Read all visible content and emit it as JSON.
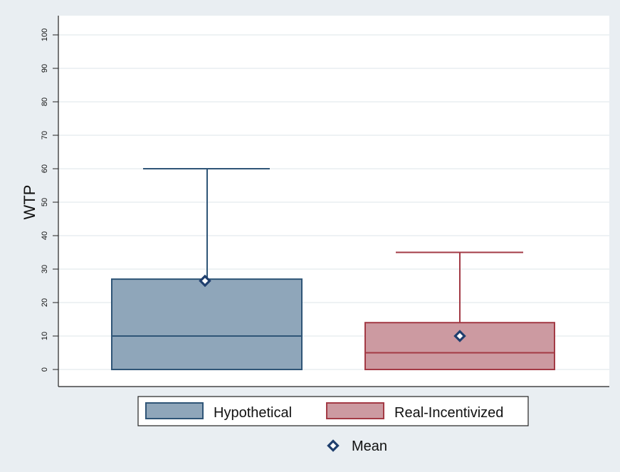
{
  "chart_data": {
    "type": "box",
    "ylabel": "WTP",
    "ylim": [
      0,
      100
    ],
    "yticks": [
      0,
      10,
      20,
      30,
      40,
      50,
      60,
      70,
      80,
      90,
      100
    ],
    "grid": true,
    "legend_position": "bottom",
    "series": [
      {
        "name": "Hypothetical",
        "min": 0,
        "q1": 0,
        "median": 10,
        "q3": 27,
        "max": 60,
        "mean": 26.5,
        "fill": "#8fa6ba",
        "stroke": "#2f5577"
      },
      {
        "name": "Real-Incentivized",
        "min": 0,
        "q1": 0,
        "median": 5,
        "q3": 14,
        "max": 35,
        "mean": 10,
        "fill": "#cc9aa1",
        "stroke": "#a33a45"
      }
    ],
    "mean_marker": {
      "label": "Mean",
      "color": "#1f3f6e",
      "shape": "diamond"
    }
  },
  "colors": {
    "background": "#e9eef2",
    "plot_background": "#ffffff",
    "grid": "#e3eaee",
    "axis": "#222222"
  }
}
